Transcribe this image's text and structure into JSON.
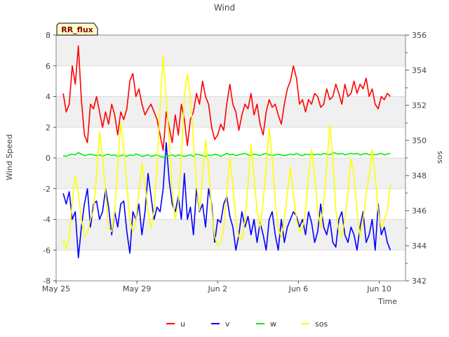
{
  "chart_data": {
    "type": "line",
    "title": "Wind",
    "badge": "RR_flux",
    "xlabel": "Time",
    "ylabel": "Wind Speed",
    "y2label": "sos",
    "xlim": [
      0,
      17.3
    ],
    "ylim": [
      -8,
      8
    ],
    "y2lim": [
      342,
      356
    ],
    "x_ticks": [
      {
        "label": "May 25",
        "value": 0
      },
      {
        "label": "May 29",
        "value": 4
      },
      {
        "label": "Jun 2",
        "value": 8
      },
      {
        "label": "Jun 6",
        "value": 12
      },
      {
        "label": "Jun 10",
        "value": 16
      }
    ],
    "y_ticks": [
      -8,
      -6,
      -4,
      -2,
      0,
      2,
      4,
      6,
      8
    ],
    "y2_ticks": [
      342,
      344,
      346,
      348,
      350,
      352,
      354,
      356
    ],
    "colors": {
      "u": "#ff0000",
      "v": "#0000ff",
      "w": "#00ee00",
      "sos": "#ffff00",
      "band": "#f0f0f0",
      "grid": "#dddddd",
      "badge_bg": "#ffffcc",
      "badge_text": "#880000"
    },
    "legend": [
      "u",
      "v",
      "w",
      "sos"
    ],
    "legend_position": "bottom-center",
    "series": [
      {
        "name": "u",
        "axis": "left",
        "x": [
          0.35,
          0.5,
          0.65,
          0.8,
          0.95,
          1.1,
          1.25,
          1.4,
          1.55,
          1.7,
          1.85,
          2.0,
          2.15,
          2.3,
          2.45,
          2.6,
          2.75,
          2.9,
          3.05,
          3.2,
          3.35,
          3.5,
          3.65,
          3.8,
          3.95,
          4.1,
          4.25,
          4.4,
          4.55,
          4.7,
          4.85,
          5.0,
          5.15,
          5.3,
          5.45,
          5.6,
          5.75,
          5.9,
          6.05,
          6.2,
          6.35,
          6.5,
          6.65,
          6.8,
          6.95,
          7.1,
          7.25,
          7.4,
          7.55,
          7.7,
          7.85,
          8.0,
          8.15,
          8.3,
          8.45,
          8.6,
          8.75,
          8.9,
          9.05,
          9.2,
          9.35,
          9.5,
          9.65,
          9.8,
          9.95,
          10.1,
          10.25,
          10.4,
          10.55,
          10.7,
          10.85,
          11.0,
          11.15,
          11.3,
          11.45,
          11.6,
          11.75,
          11.9,
          12.05,
          12.2,
          12.35,
          12.5,
          12.65,
          12.8,
          12.95,
          13.1,
          13.25,
          13.4,
          13.55,
          13.7,
          13.85,
          14.0,
          14.15,
          14.3,
          14.45,
          14.6,
          14.75,
          14.9,
          15.05,
          15.2,
          15.35,
          15.5,
          15.65,
          15.8,
          15.95,
          16.1,
          16.25,
          16.4,
          16.55
        ],
        "values": [
          4.2,
          3.0,
          3.5,
          6.0,
          4.8,
          7.3,
          3.8,
          1.5,
          1.0,
          3.5,
          3.2,
          4.0,
          3.0,
          2.0,
          3.0,
          2.2,
          3.5,
          2.8,
          1.5,
          3.0,
          2.5,
          3.2,
          5.0,
          5.5,
          4.0,
          4.5,
          3.5,
          2.8,
          3.2,
          3.5,
          3.0,
          2.5,
          1.5,
          0.5,
          3.0,
          2.0,
          1.0,
          2.8,
          1.5,
          3.5,
          2.5,
          0.8,
          2.5,
          3.0,
          4.2,
          3.5,
          5.0,
          4.0,
          3.5,
          2.0,
          1.2,
          1.5,
          2.2,
          1.8,
          3.5,
          4.8,
          3.5,
          3.0,
          1.8,
          2.8,
          3.5,
          3.2,
          4.2,
          2.8,
          3.5,
          2.2,
          1.5,
          3.0,
          3.8,
          3.3,
          3.5,
          2.8,
          2.2,
          3.5,
          4.5,
          5.0,
          6.0,
          5.2,
          3.5,
          3.8,
          3.0,
          3.8,
          3.5,
          4.2,
          4.0,
          3.3,
          3.5,
          4.5,
          3.8,
          4.0,
          4.8,
          4.2,
          3.5,
          4.8,
          4.0,
          4.2,
          5.0,
          4.2,
          4.8,
          4.5,
          5.2,
          4.0,
          4.5,
          3.5,
          3.2,
          4.0,
          3.8,
          4.2,
          4.0
        ]
      },
      {
        "name": "v",
        "axis": "left",
        "x": [
          0.35,
          0.5,
          0.65,
          0.8,
          0.95,
          1.1,
          1.25,
          1.4,
          1.55,
          1.7,
          1.85,
          2.0,
          2.15,
          2.3,
          2.45,
          2.6,
          2.75,
          2.9,
          3.05,
          3.2,
          3.35,
          3.5,
          3.65,
          3.8,
          3.95,
          4.1,
          4.25,
          4.4,
          4.55,
          4.7,
          4.85,
          5.0,
          5.15,
          5.3,
          5.45,
          5.6,
          5.75,
          5.9,
          6.05,
          6.2,
          6.35,
          6.5,
          6.65,
          6.8,
          6.95,
          7.1,
          7.25,
          7.4,
          7.55,
          7.7,
          7.85,
          8.0,
          8.15,
          8.3,
          8.45,
          8.6,
          8.75,
          8.9,
          9.05,
          9.2,
          9.35,
          9.5,
          9.65,
          9.8,
          9.95,
          10.1,
          10.25,
          10.4,
          10.55,
          10.7,
          10.85,
          11.0,
          11.15,
          11.3,
          11.45,
          11.6,
          11.75,
          11.9,
          12.05,
          12.2,
          12.35,
          12.5,
          12.65,
          12.8,
          12.95,
          13.1,
          13.25,
          13.4,
          13.55,
          13.7,
          13.85,
          14.0,
          14.15,
          14.3,
          14.45,
          14.6,
          14.75,
          14.9,
          15.05,
          15.2,
          15.35,
          15.5,
          15.65,
          15.8,
          15.95,
          16.1,
          16.25,
          16.4,
          16.55
        ],
        "values": [
          -2.3,
          -3.0,
          -2.2,
          -4.0,
          -3.5,
          -6.5,
          -4.5,
          -3.0,
          -2.0,
          -4.5,
          -3.0,
          -2.8,
          -4.0,
          -3.5,
          -2.0,
          -3.2,
          -5.0,
          -3.5,
          -4.5,
          -3.0,
          -2.8,
          -4.8,
          -6.2,
          -3.5,
          -4.0,
          -3.0,
          -5.0,
          -3.5,
          -1.0,
          -2.5,
          -4.0,
          -3.2,
          -3.5,
          -2.0,
          1.0,
          -1.5,
          -3.0,
          -3.5,
          -2.5,
          -4.0,
          -1.0,
          -4.0,
          -3.2,
          -5.0,
          -2.0,
          -3.5,
          -3.0,
          -4.5,
          -2.0,
          -3.0,
          -5.5,
          -4.0,
          -4.2,
          -3.0,
          -2.5,
          -3.8,
          -4.5,
          -6.0,
          -5.0,
          -3.5,
          -4.5,
          -3.8,
          -5.0,
          -4.0,
          -5.5,
          -4.2,
          -5.0,
          -6.0,
          -4.0,
          -3.5,
          -5.0,
          -6.0,
          -4.0,
          -5.5,
          -4.5,
          -4.0,
          -3.5,
          -3.8,
          -4.5,
          -4.0,
          -5.0,
          -3.5,
          -4.2,
          -5.5,
          -4.8,
          -3.0,
          -4.5,
          -5.0,
          -4.0,
          -5.5,
          -5.8,
          -4.0,
          -3.5,
          -5.0,
          -5.5,
          -4.5,
          -5.0,
          -6.0,
          -4.5,
          -3.5,
          -5.5,
          -5.0,
          -4.0,
          -6.0,
          -3.0,
          -5.0,
          -4.5,
          -5.5,
          -6.0
        ]
      },
      {
        "name": "w",
        "axis": "left",
        "x": [
          0.35,
          0.5,
          0.65,
          0.8,
          0.95,
          1.1,
          1.25,
          1.4,
          1.55,
          1.7,
          1.85,
          2.0,
          2.15,
          2.3,
          2.45,
          2.6,
          2.75,
          2.9,
          3.05,
          3.2,
          3.35,
          3.5,
          3.65,
          3.8,
          3.95,
          4.1,
          4.25,
          4.4,
          4.55,
          4.7,
          4.85,
          5.0,
          5.15,
          5.3,
          5.45,
          5.6,
          5.75,
          5.9,
          6.05,
          6.2,
          6.35,
          6.5,
          6.65,
          6.8,
          6.95,
          7.1,
          7.25,
          7.4,
          7.55,
          7.7,
          7.85,
          8.0,
          8.15,
          8.3,
          8.45,
          8.6,
          8.75,
          8.9,
          9.05,
          9.2,
          9.35,
          9.5,
          9.65,
          9.8,
          9.95,
          10.1,
          10.25,
          10.4,
          10.55,
          10.7,
          10.85,
          11.0,
          11.15,
          11.3,
          11.45,
          11.6,
          11.75,
          11.9,
          12.05,
          12.2,
          12.35,
          12.5,
          12.65,
          12.8,
          12.95,
          13.1,
          13.25,
          13.4,
          13.55,
          13.7,
          13.85,
          14.0,
          14.15,
          14.3,
          14.45,
          14.6,
          14.75,
          14.9,
          15.05,
          15.2,
          15.35,
          15.5,
          15.65,
          15.8,
          15.95,
          16.1,
          16.25,
          16.4,
          16.55
        ],
        "values": [
          0.15,
          0.1,
          0.2,
          0.25,
          0.2,
          0.35,
          0.25,
          0.15,
          0.2,
          0.25,
          0.2,
          0.15,
          0.2,
          0.1,
          0.2,
          0.25,
          0.15,
          0.2,
          0.1,
          0.15,
          0.2,
          0.1,
          0.2,
          0.15,
          0.25,
          0.2,
          0.1,
          0.15,
          0.2,
          0.1,
          0.15,
          0.2,
          0.1,
          0.05,
          0.1,
          0.15,
          0.2,
          0.1,
          0.2,
          0.15,
          0.1,
          0.15,
          0.2,
          0.1,
          0.25,
          0.2,
          0.15,
          0.1,
          0.2,
          0.15,
          0.25,
          0.2,
          0.1,
          0.2,
          0.3,
          0.2,
          0.25,
          0.15,
          0.2,
          0.25,
          0.3,
          0.2,
          0.15,
          0.25,
          0.2,
          0.15,
          0.25,
          0.3,
          0.2,
          0.15,
          0.2,
          0.25,
          0.2,
          0.15,
          0.2,
          0.25,
          0.2,
          0.3,
          0.2,
          0.15,
          0.25,
          0.2,
          0.3,
          0.2,
          0.25,
          0.2,
          0.3,
          0.25,
          0.2,
          0.35,
          0.3,
          0.25,
          0.3,
          0.2,
          0.25,
          0.3,
          0.25,
          0.3,
          0.2,
          0.25,
          0.3,
          0.2,
          0.25,
          0.2,
          0.25,
          0.3,
          0.2,
          0.25,
          0.3
        ]
      },
      {
        "name": "sos",
        "axis": "right",
        "x": [
          0.35,
          0.5,
          0.65,
          0.8,
          0.95,
          1.1,
          1.25,
          1.4,
          1.55,
          1.7,
          1.85,
          2.0,
          2.15,
          2.3,
          2.45,
          2.6,
          2.75,
          2.9,
          3.05,
          3.2,
          3.35,
          3.5,
          3.65,
          3.8,
          3.95,
          4.1,
          4.25,
          4.4,
          4.55,
          4.7,
          4.85,
          5.0,
          5.15,
          5.3,
          5.45,
          5.6,
          5.75,
          5.9,
          6.05,
          6.2,
          6.35,
          6.5,
          6.65,
          6.8,
          6.95,
          7.1,
          7.25,
          7.4,
          7.55,
          7.7,
          7.85,
          8.0,
          8.15,
          8.3,
          8.45,
          8.6,
          8.75,
          8.9,
          9.05,
          9.2,
          9.35,
          9.5,
          9.65,
          9.8,
          9.95,
          10.1,
          10.25,
          10.4,
          10.55,
          10.7,
          10.85,
          11.0,
          11.15,
          11.3,
          11.45,
          11.6,
          11.75,
          11.9,
          12.05,
          12.2,
          12.35,
          12.5,
          12.65,
          12.8,
          12.95,
          13.1,
          13.25,
          13.4,
          13.55,
          13.7,
          13.85,
          14.0,
          14.15,
          14.3,
          14.45,
          14.6,
          14.75,
          14.9,
          15.05,
          15.2,
          15.35,
          15.5,
          15.65,
          15.8,
          15.95,
          16.1,
          16.25,
          16.4,
          16.55
        ],
        "values": [
          344.3,
          343.8,
          344.5,
          346.5,
          348.0,
          347.0,
          345.5,
          344.5,
          344.7,
          345.5,
          346.0,
          348.0,
          350.5,
          349.0,
          347.0,
          345.0,
          344.8,
          346.0,
          348.5,
          351.0,
          349.5,
          347.5,
          345.5,
          344.8,
          345.5,
          347.0,
          348.7,
          347.5,
          346.0,
          345.0,
          346.0,
          348.5,
          352.0,
          354.8,
          352.5,
          350.0,
          347.0,
          345.5,
          346.5,
          349.0,
          352.5,
          353.8,
          352.5,
          350.0,
          347.5,
          346.0,
          348.0,
          350.0,
          348.5,
          346.0,
          344.5,
          344.0,
          344.2,
          345.0,
          347.0,
          349.0,
          347.5,
          345.5,
          344.5,
          344.3,
          345.5,
          347.5,
          349.8,
          348.0,
          346.0,
          345.0,
          346.5,
          348.5,
          350.7,
          349.0,
          346.5,
          345.0,
          344.5,
          345.5,
          347.0,
          348.5,
          347.0,
          345.5,
          344.8,
          345.0,
          346.0,
          348.0,
          349.5,
          348.0,
          346.0,
          345.0,
          346.5,
          348.5,
          350.9,
          349.0,
          346.0,
          344.8,
          344.5,
          345.5,
          347.0,
          349.0,
          348.0,
          346.0,
          344.5,
          345.5,
          347.0,
          348.0,
          349.5,
          348.0,
          346.0,
          345.0,
          345.5,
          346.0,
          347.5
        ]
      }
    ]
  }
}
